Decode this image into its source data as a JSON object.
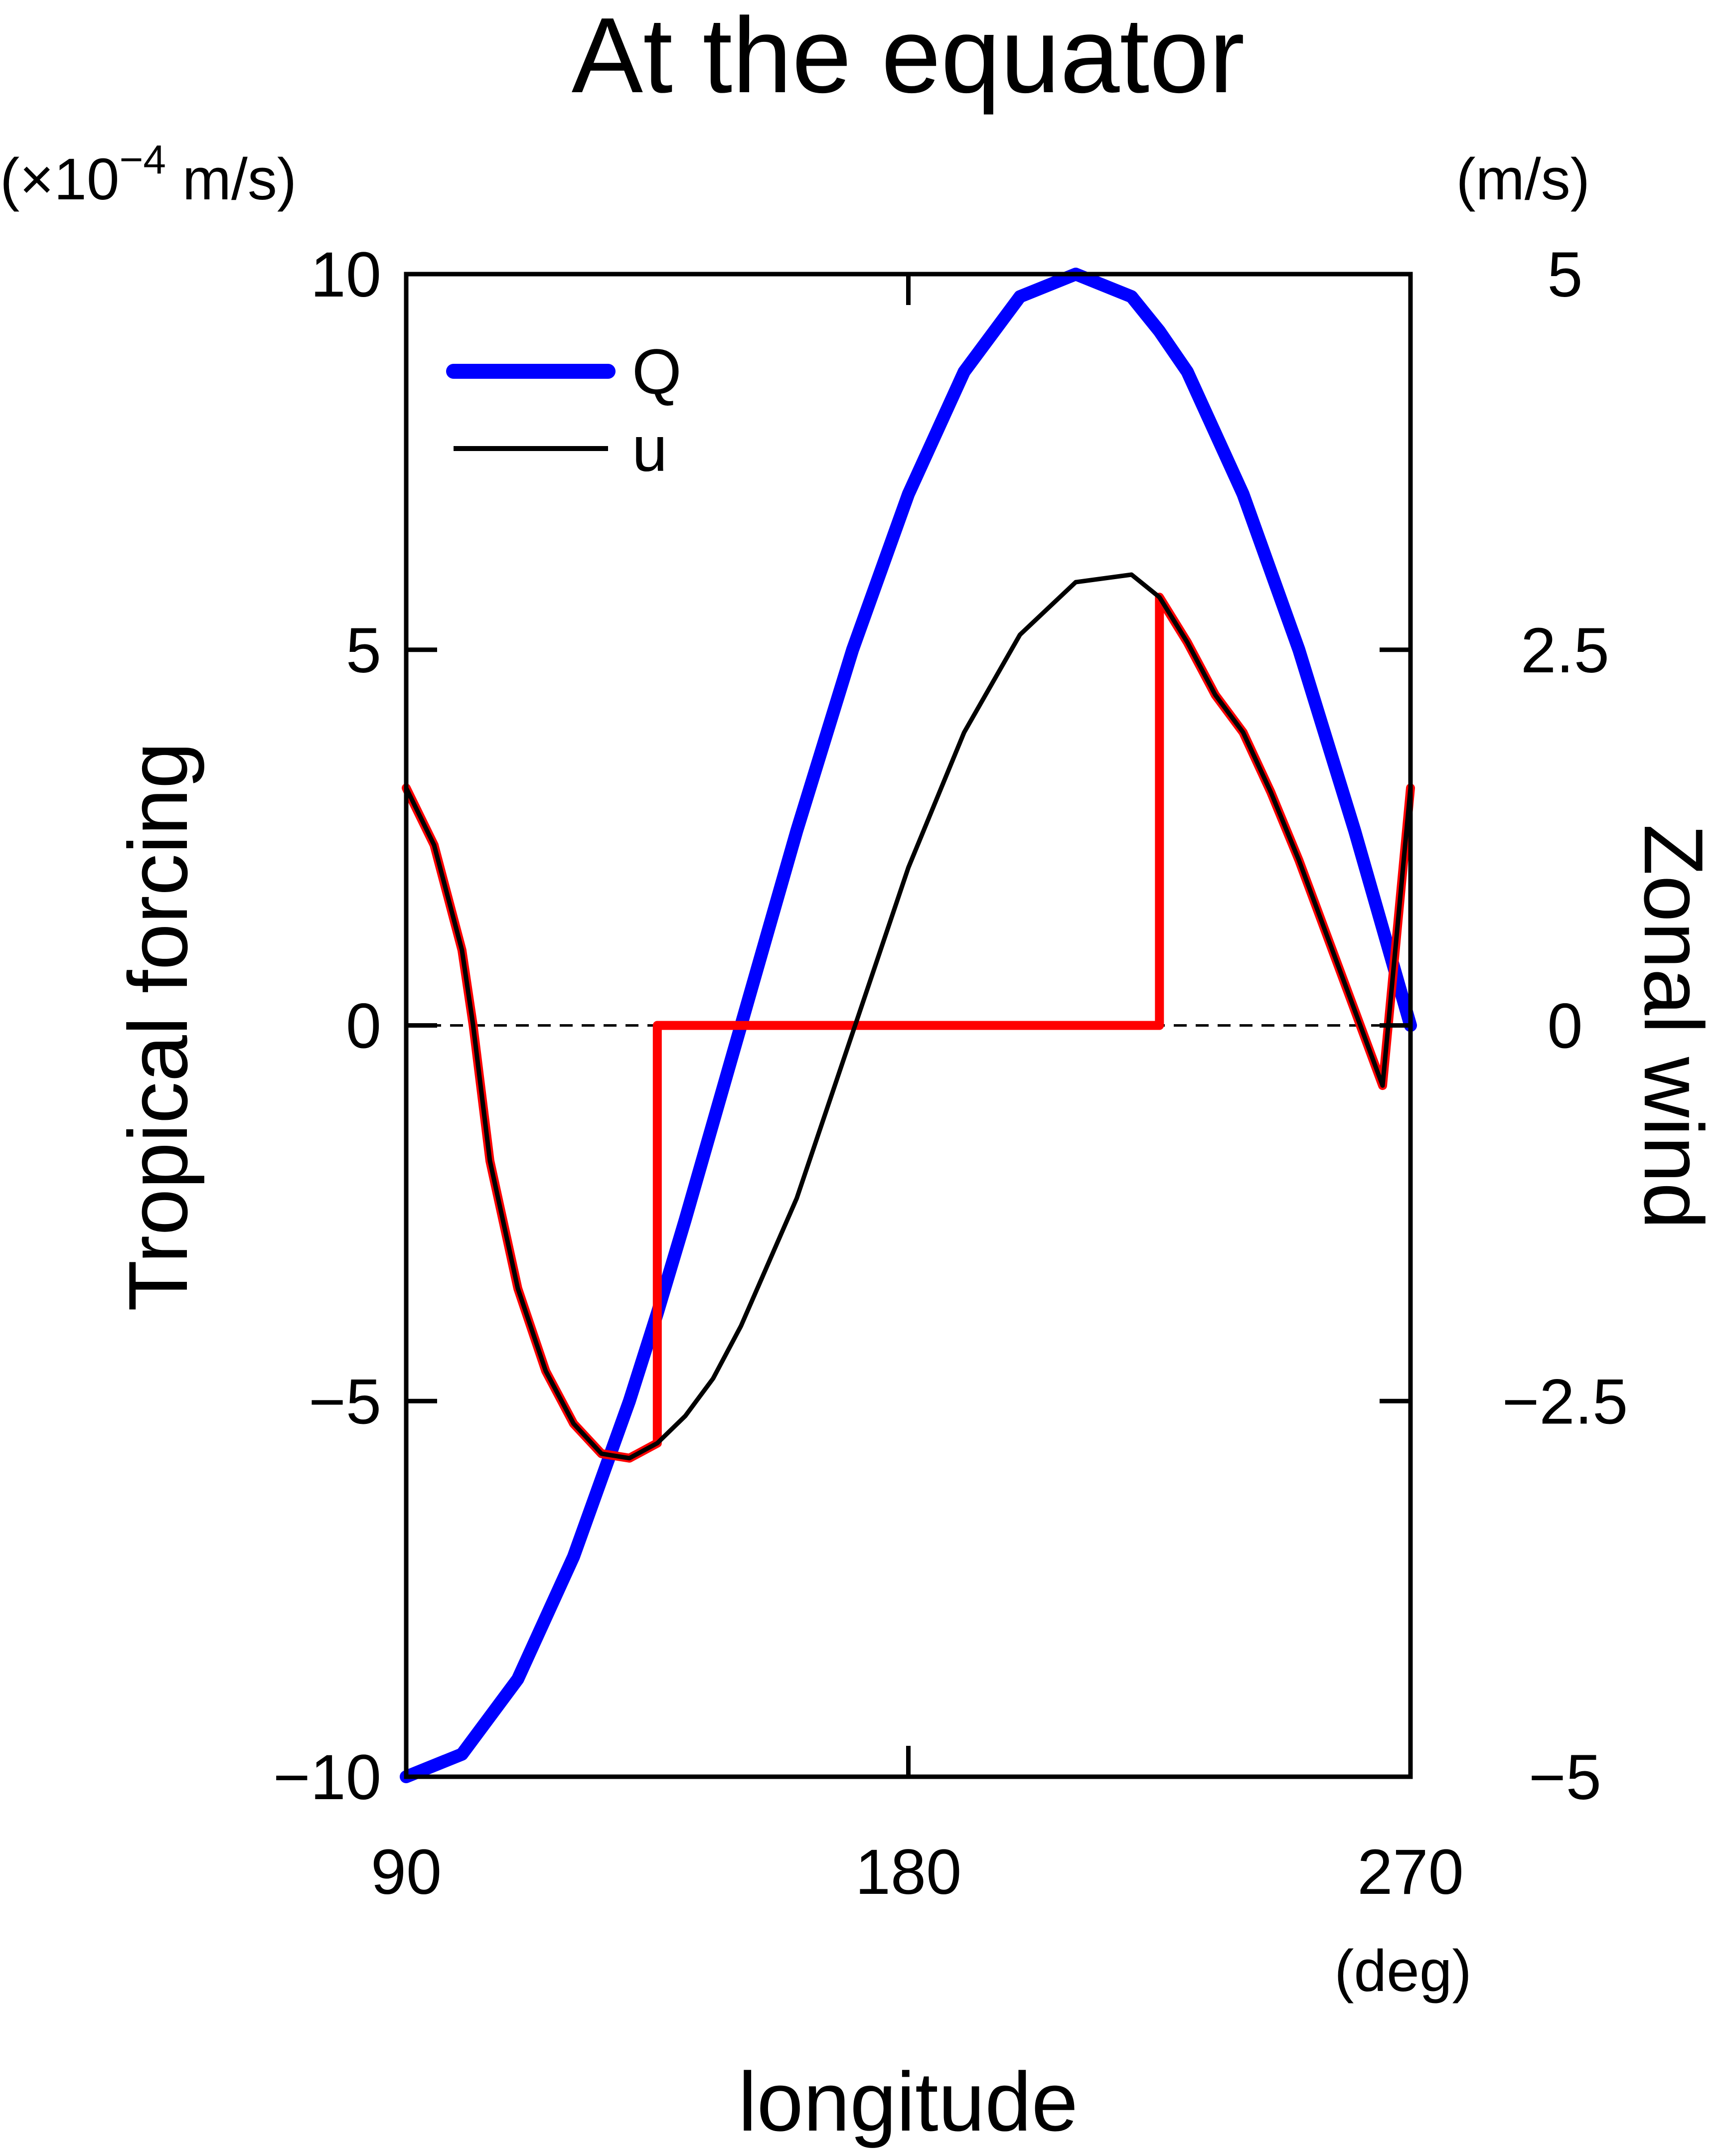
{
  "chart_data": {
    "type": "line",
    "title": "At the equator",
    "xlabel": "longitude",
    "x_unit": "(deg)",
    "xlim": [
      90,
      270
    ],
    "x_ticks": [
      "90",
      "180",
      "270"
    ],
    "ylabel_left": "Tropical forcing",
    "left_unit": "(×10",
    "left_unit_exp": "−4",
    "left_unit_tail": " m/s)",
    "ylim_left": [
      -10,
      10
    ],
    "left_ticks": [
      "10",
      "5",
      "0",
      "−5",
      "−10"
    ],
    "ylabel_right": "Zonal wind",
    "right_unit": "(m/s)",
    "ylim_right": [
      -5,
      5
    ],
    "right_ticks": [
      "5",
      "2.5",
      "0",
      "−2.5",
      "−5"
    ],
    "zero_line": "dashed",
    "legend": {
      "position": "top-left",
      "entries": [
        "Q",
        "u"
      ]
    },
    "colors": {
      "Q": "#0000ff",
      "u": "#000000",
      "highlight": "#ff0000"
    },
    "series": [
      {
        "name": "Q",
        "axis": "left",
        "x": [
          90,
          100,
          110,
          120,
          130,
          135,
          140,
          150,
          160,
          170,
          180,
          190,
          200,
          210,
          220,
          225,
          230,
          240,
          250,
          260,
          270
        ],
        "y": [
          -10,
          -9.7,
          -8.7,
          -7.07,
          -5,
          -3.83,
          -2.59,
          0,
          2.59,
          5,
          7.07,
          8.7,
          9.7,
          10,
          9.7,
          9.24,
          8.7,
          7.07,
          5,
          2.59,
          0
        ]
      },
      {
        "name": "u",
        "axis": "right",
        "x": [
          90,
          95,
          100,
          102,
          105,
          110,
          115,
          120,
          125,
          130,
          135,
          140,
          145,
          150,
          160,
          170,
          180,
          190,
          200,
          210,
          220,
          225,
          230,
          235,
          240,
          245,
          250,
          255,
          260,
          265,
          270
        ],
        "y": [
          1.58,
          1.2,
          0.5,
          0,
          -0.9,
          -1.75,
          -2.3,
          -2.65,
          -2.85,
          -2.88,
          -2.78,
          -2.6,
          -2.35,
          -2.0,
          -1.15,
          -0.05,
          1.05,
          1.95,
          2.6,
          2.95,
          3.0,
          2.85,
          2.55,
          2.2,
          1.95,
          1.55,
          1.1,
          0.6,
          0.1,
          -0.4,
          1.58
        ]
      }
    ]
  }
}
